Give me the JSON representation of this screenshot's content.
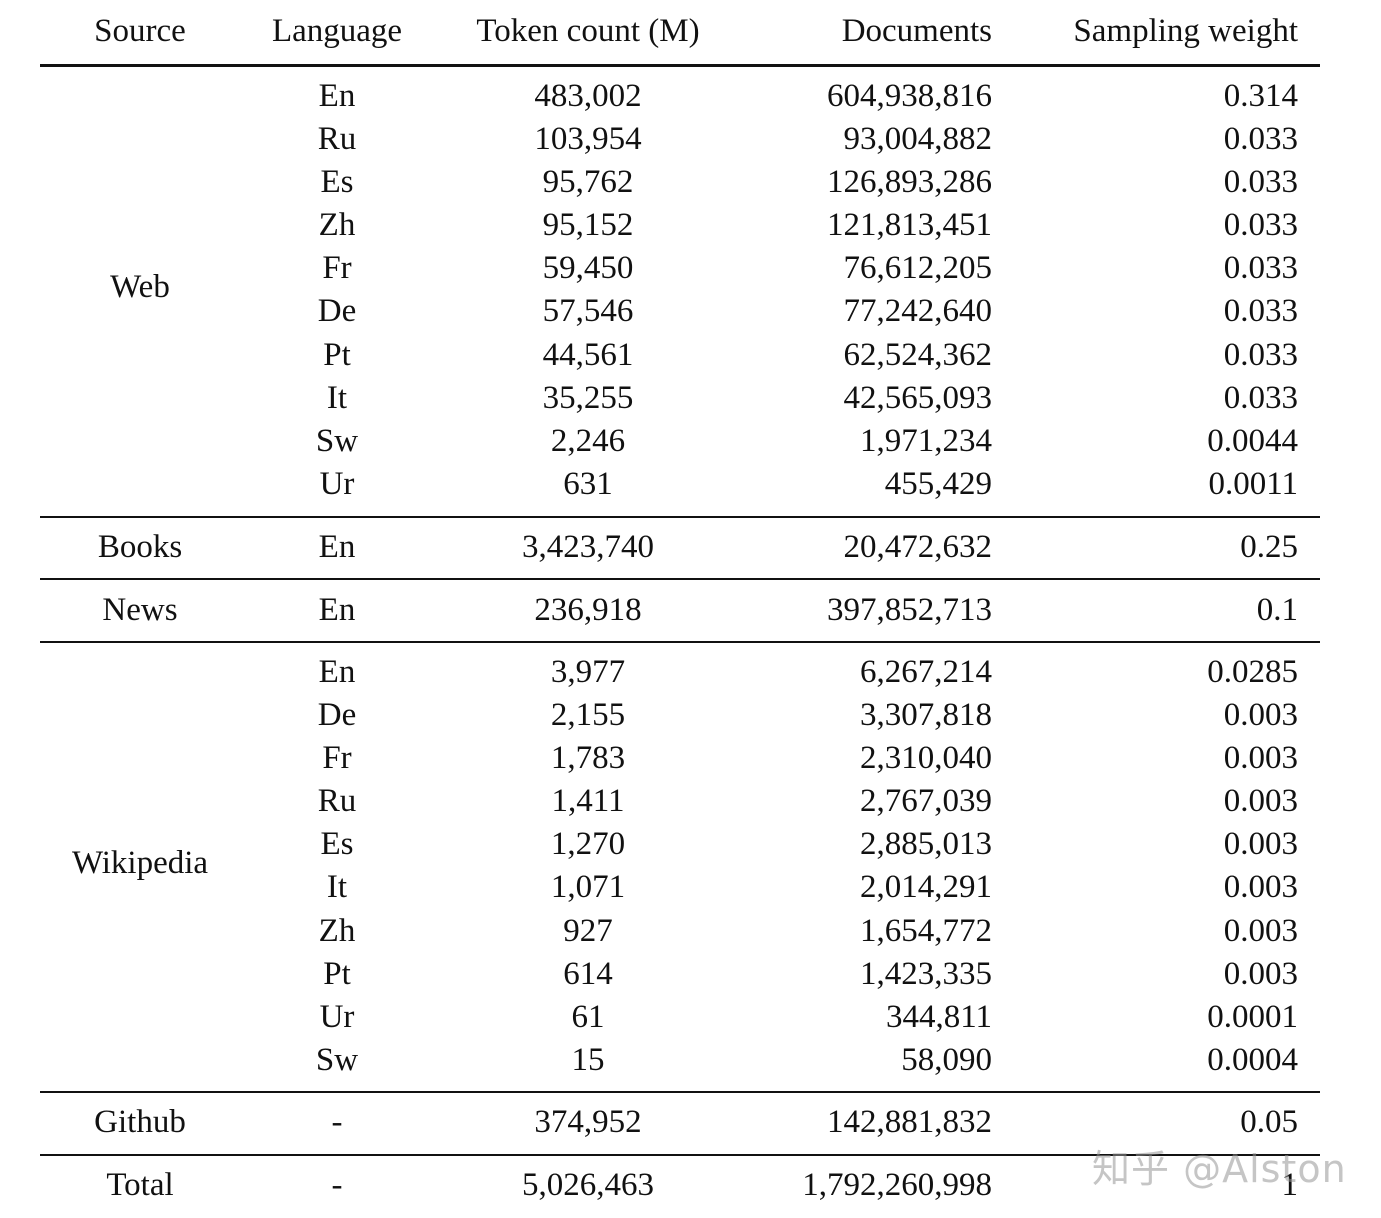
{
  "header": {
    "source": "Source",
    "language": "Language",
    "token_count": "Token count (M)",
    "documents": "Documents",
    "sampling_weight": "Sampling weight"
  },
  "groups": {
    "web": {
      "source": "Web",
      "rows": [
        {
          "language": "En",
          "tokens": "483,002",
          "documents": "604,938,816",
          "weight": "0.314"
        },
        {
          "language": "Ru",
          "tokens": "103,954",
          "documents": "93,004,882",
          "weight": "0.033"
        },
        {
          "language": "Es",
          "tokens": "95,762",
          "documents": "126,893,286",
          "weight": "0.033"
        },
        {
          "language": "Zh",
          "tokens": "95,152",
          "documents": "121,813,451",
          "weight": "0.033"
        },
        {
          "language": "Fr",
          "tokens": "59,450",
          "documents": "76,612,205",
          "weight": "0.033"
        },
        {
          "language": "De",
          "tokens": "57,546",
          "documents": "77,242,640",
          "weight": "0.033"
        },
        {
          "language": "Pt",
          "tokens": "44,561",
          "documents": "62,524,362",
          "weight": "0.033"
        },
        {
          "language": "It",
          "tokens": "35,255",
          "documents": "42,565,093",
          "weight": "0.033"
        },
        {
          "language": "Sw",
          "tokens": "2,246",
          "documents": "1,971,234",
          "weight": "0.0044"
        },
        {
          "language": "Ur",
          "tokens": "631",
          "documents": "455,429",
          "weight": "0.0011"
        }
      ]
    },
    "books": {
      "source": "Books",
      "rows": [
        {
          "language": "En",
          "tokens": "3,423,740",
          "documents": "20,472,632",
          "weight": "0.25"
        }
      ]
    },
    "news": {
      "source": "News",
      "rows": [
        {
          "language": "En",
          "tokens": "236,918",
          "documents": "397,852,713",
          "weight": "0.1"
        }
      ]
    },
    "wikipedia": {
      "source": "Wikipedia",
      "rows": [
        {
          "language": "En",
          "tokens": "3,977",
          "documents": "6,267,214",
          "weight": "0.0285"
        },
        {
          "language": "De",
          "tokens": "2,155",
          "documents": "3,307,818",
          "weight": "0.003"
        },
        {
          "language": "Fr",
          "tokens": "1,783",
          "documents": "2,310,040",
          "weight": "0.003"
        },
        {
          "language": "Ru",
          "tokens": "1,411",
          "documents": "2,767,039",
          "weight": "0.003"
        },
        {
          "language": "Es",
          "tokens": "1,270",
          "documents": "2,885,013",
          "weight": "0.003"
        },
        {
          "language": "It",
          "tokens": "1,071",
          "documents": "2,014,291",
          "weight": "0.003"
        },
        {
          "language": "Zh",
          "tokens": "927",
          "documents": "1,654,772",
          "weight": "0.003"
        },
        {
          "language": "Pt",
          "tokens": "614",
          "documents": "1,423,335",
          "weight": "0.003"
        },
        {
          "language": "Ur",
          "tokens": "61",
          "documents": "344,811",
          "weight": "0.0001"
        },
        {
          "language": "Sw",
          "tokens": "15",
          "documents": "58,090",
          "weight": "0.0004"
        }
      ]
    },
    "github": {
      "source": "Github",
      "rows": [
        {
          "language": "-",
          "tokens": "374,952",
          "documents": "142,881,832",
          "weight": "0.05"
        }
      ]
    },
    "total": {
      "source": "Total",
      "rows": [
        {
          "language": "-",
          "tokens": "5,026,463",
          "documents": "1,792,260,998",
          "weight": "1"
        }
      ]
    }
  },
  "watermark": "知乎 @Alston"
}
